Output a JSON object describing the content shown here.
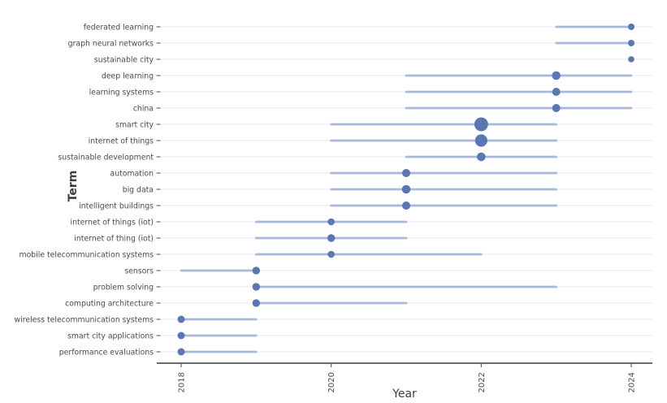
{
  "chart_data": {
    "type": "scatter",
    "variant": "trend-topics-lollipop",
    "title": "",
    "xlabel": "Year",
    "ylabel": "Term",
    "x_ticks": [
      2018,
      2020,
      2022,
      2024
    ],
    "xlim": [
      2017.7,
      2024.3
    ],
    "grid": "horizontal",
    "legend_position": "none",
    "terms": [
      {
        "label": "federated learning",
        "year_start": 2023,
        "year_end": 2024,
        "peak_year": 2024,
        "dot_radius": 4.0
      },
      {
        "label": "graph neural networks",
        "year_start": 2023,
        "year_end": 2024,
        "peak_year": 2024,
        "dot_radius": 4.0
      },
      {
        "label": "sustainable city",
        "year_start": 2024,
        "year_end": 2024,
        "peak_year": 2024,
        "dot_radius": 3.8
      },
      {
        "label": "deep learning",
        "year_start": 2021,
        "year_end": 2024,
        "peak_year": 2023,
        "dot_radius": 5.3
      },
      {
        "label": "learning systems",
        "year_start": 2021,
        "year_end": 2024,
        "peak_year": 2023,
        "dot_radius": 5.0
      },
      {
        "label": "china",
        "year_start": 2021,
        "year_end": 2024,
        "peak_year": 2023,
        "dot_radius": 5.0
      },
      {
        "label": "smart city",
        "year_start": 2020,
        "year_end": 2023,
        "peak_year": 2022,
        "dot_radius": 8.5
      },
      {
        "label": "internet of things",
        "year_start": 2020,
        "year_end": 2023,
        "peak_year": 2022,
        "dot_radius": 7.6
      },
      {
        "label": "sustainable development",
        "year_start": 2021,
        "year_end": 2023,
        "peak_year": 2022,
        "dot_radius": 5.3
      },
      {
        "label": "automation",
        "year_start": 2020,
        "year_end": 2023,
        "peak_year": 2021,
        "dot_radius": 5.0
      },
      {
        "label": "big data",
        "year_start": 2020,
        "year_end": 2023,
        "peak_year": 2021,
        "dot_radius": 5.3
      },
      {
        "label": "intelligent buildings",
        "year_start": 2020,
        "year_end": 2023,
        "peak_year": 2021,
        "dot_radius": 5.0
      },
      {
        "label": "internet of things (iot)",
        "year_start": 2019,
        "year_end": 2021,
        "peak_year": 2020,
        "dot_radius": 4.3
      },
      {
        "label": "internet of thing (iot)",
        "year_start": 2019,
        "year_end": 2021,
        "peak_year": 2020,
        "dot_radius": 4.7
      },
      {
        "label": "mobile telecommunication systems",
        "year_start": 2019,
        "year_end": 2022,
        "peak_year": 2020,
        "dot_radius": 4.3
      },
      {
        "label": "sensors",
        "year_start": 2018,
        "year_end": 2019,
        "peak_year": 2019,
        "dot_radius": 4.7
      },
      {
        "label": "problem solving",
        "year_start": 2019,
        "year_end": 2023,
        "peak_year": 2019,
        "dot_radius": 4.7
      },
      {
        "label": "computing architecture",
        "year_start": 2019,
        "year_end": 2021,
        "peak_year": 2019,
        "dot_radius": 4.7
      },
      {
        "label": "wireless telecommunication systems",
        "year_start": 2018,
        "year_end": 2019,
        "peak_year": 2018,
        "dot_radius": 4.5
      },
      {
        "label": "smart city applications",
        "year_start": 2018,
        "year_end": 2019,
        "peak_year": 2018,
        "dot_radius": 4.5
      },
      {
        "label": "performance evaluations",
        "year_start": 2018,
        "year_end": 2019,
        "peak_year": 2018,
        "dot_radius": 4.5
      }
    ]
  },
  "colors": {
    "dot": "#5a77b2",
    "range_line": "#a9b7d8",
    "gridline": "#e9eaf2",
    "axis_line": "#3b3b3b",
    "tick_text": "#4a4a4a",
    "axis_title_text": "#3d3d3d",
    "background": "#ffffff"
  }
}
